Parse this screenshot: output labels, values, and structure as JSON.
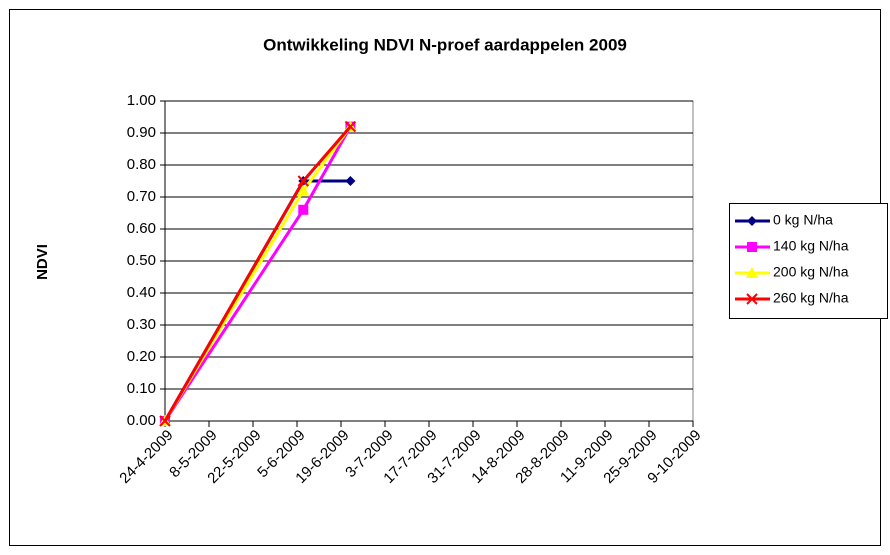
{
  "chart_data": {
    "type": "line",
    "title": "Ontwikkeling NDVI N-proef aardappelen 2009",
    "y_label": "NDVI",
    "x": [
      "24-4-2009",
      "7-6-2009",
      "22-6-2009"
    ],
    "series": [
      {
        "name": "0 kg N/ha",
        "color": "#000080",
        "marker": "diamond",
        "values": [
          0,
          0.75,
          0.75
        ]
      },
      {
        "name": "140 kg N/ha",
        "color": "#ff00ff",
        "marker": "square",
        "values": [
          0,
          0.66,
          0.92
        ]
      },
      {
        "name": "200 kg N/ha",
        "color": "#ffff00",
        "marker": "triangle",
        "values": [
          0,
          0.72,
          0.92
        ]
      },
      {
        "name": "260 kg N/ha",
        "color": "#ff0000",
        "marker": "x",
        "values": [
          0,
          0.75,
          0.92
        ]
      }
    ],
    "xlim": [
      "24-4-2009",
      "9-10-2009"
    ],
    "xticks": [
      "24-4-2009",
      "8-5-2009",
      "22-5-2009",
      "5-6-2009",
      "19-6-2009",
      "3-7-2009",
      "17-7-2009",
      "31-7-2009",
      "14-8-2009",
      "28-8-2009",
      "11-9-2009",
      "25-9-2009",
      "9-10-2009"
    ],
    "ylim": [
      0,
      1
    ],
    "yticks": [
      {
        "value": 0,
        "label": "0.00"
      },
      {
        "value": 0.1,
        "label": "0.10"
      },
      {
        "value": 0.2,
        "label": "0.20"
      },
      {
        "value": 0.3,
        "label": "0.30"
      },
      {
        "value": 0.4,
        "label": "0.40"
      },
      {
        "value": 0.5,
        "label": "0.50"
      },
      {
        "value": 0.6,
        "label": "0.60"
      },
      {
        "value": 0.7,
        "label": "0.70"
      },
      {
        "value": 0.8,
        "label": "0.80"
      },
      {
        "value": 0.9,
        "label": "0.90"
      },
      {
        "value": 1,
        "label": "1.00"
      }
    ],
    "grid": true,
    "legend": "right"
  }
}
